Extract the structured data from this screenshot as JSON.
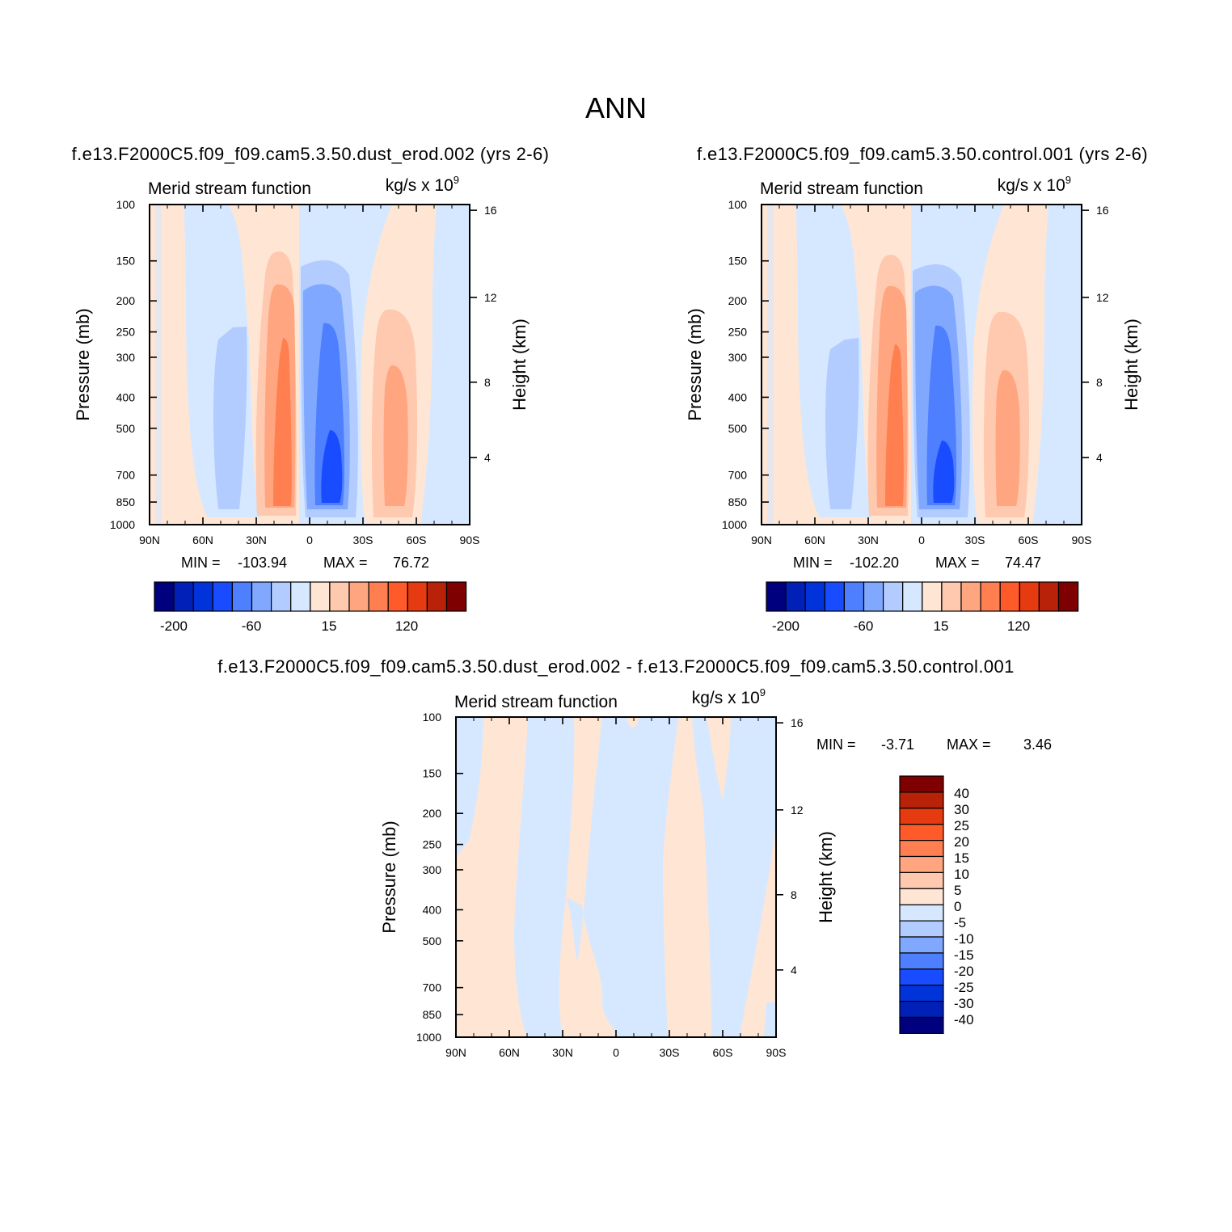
{
  "figure": {
    "title": "ANN"
  },
  "colors": {
    "cmap": [
      "#00007f",
      "#0020b8",
      "#0033d9",
      "#1a4cff",
      "#4d7fff",
      "#80a8ff",
      "#b3ccff",
      "#d6e8ff",
      "#ffe6d4",
      "#ffc9b0",
      "#ffa680",
      "#ff7f50",
      "#ff5a2a",
      "#e63a10",
      "#b82208",
      "#7f0000"
    ]
  },
  "chart_data": [
    {
      "type": "heatmap",
      "title": "f.e13.F2000C5.f09_f09.cam5.3.50.dust_erod.002 (yrs 2-6)",
      "left_string": "Merid stream function",
      "units": "kg/s x 10",
      "units_exp": "9",
      "ylabel": "Pressure (mb)",
      "ylabel_right": "Height (km)",
      "x_ticks": [
        "90N",
        "60N",
        "30N",
        "0",
        "30S",
        "60S",
        "90S"
      ],
      "y_ticks": [
        "100",
        "150",
        "200",
        "250",
        "300",
        "400",
        "500",
        "700",
        "850",
        "1000"
      ],
      "y_ticks_right": [
        "16",
        "12",
        "8",
        "4"
      ],
      "min_label": "MIN =",
      "min_value": "-103.94",
      "max_label": "MAX =",
      "max_value": "76.72",
      "colorbar": {
        "orientation": "horizontal",
        "levels": 16,
        "labels": [
          "-200",
          "-60",
          "15",
          "120"
        ]
      },
      "cells": [
        {
          "lat": -81.5,
          "p": 500,
          "value": 15
        },
        {
          "lat": -55,
          "p": 600,
          "value": -40
        },
        {
          "lat": -17,
          "p": 600,
          "value": 76.72
        },
        {
          "lat": 12,
          "p": 650,
          "value": -103.94
        },
        {
          "lat": 48,
          "p": 500,
          "value": 60
        },
        {
          "lat": 75,
          "p": 500,
          "value": -10
        }
      ]
    },
    {
      "type": "heatmap",
      "title": "f.e13.F2000C5.f09_f09.cam5.3.50.control.001 (yrs 2-6)",
      "left_string": "Merid stream function",
      "units": "kg/s x 10",
      "units_exp": "9",
      "ylabel": "Pressure (mb)",
      "ylabel_right": "Height (km)",
      "x_ticks": [
        "90N",
        "60N",
        "30N",
        "0",
        "30S",
        "60S",
        "90S"
      ],
      "y_ticks": [
        "100",
        "150",
        "200",
        "250",
        "300",
        "400",
        "500",
        "700",
        "850",
        "1000"
      ],
      "y_ticks_right": [
        "16",
        "12",
        "8",
        "4"
      ],
      "min_label": "MIN =",
      "min_value": "-102.20",
      "max_label": "MAX =",
      "max_value": "74.47",
      "colorbar": {
        "orientation": "horizontal",
        "levels": 16,
        "labels": [
          "-200",
          "-60",
          "15",
          "120"
        ]
      },
      "cells": [
        {
          "lat": -81.5,
          "p": 500,
          "value": 15
        },
        {
          "lat": -55,
          "p": 600,
          "value": -40
        },
        {
          "lat": -17,
          "p": 600,
          "value": 74.47
        },
        {
          "lat": 12,
          "p": 650,
          "value": -102.2
        },
        {
          "lat": 48,
          "p": 500,
          "value": 60
        },
        {
          "lat": 75,
          "p": 500,
          "value": -10
        }
      ]
    },
    {
      "type": "heatmap",
      "title": "f.e13.F2000C5.f09_f09.cam5.3.50.dust_erod.002 - f.e13.F2000C5.f09_f09.cam5.3.50.control.001",
      "left_string": "Merid stream function",
      "units": "kg/s x 10",
      "units_exp": "9",
      "ylabel": "Pressure (mb)",
      "ylabel_right": "Height (km)",
      "x_ticks": [
        "90N",
        "60N",
        "30N",
        "0",
        "30S",
        "60S",
        "90S"
      ],
      "y_ticks": [
        "100",
        "150",
        "200",
        "250",
        "300",
        "400",
        "500",
        "700",
        "850",
        "1000"
      ],
      "y_ticks_right": [
        "16",
        "12",
        "8",
        "4"
      ],
      "min_label": "MIN =",
      "min_value": "-3.71",
      "max_label": "MAX =",
      "max_value": "3.46",
      "colorbar": {
        "orientation": "vertical",
        "levels": 16,
        "labels": [
          "40",
          "30",
          "25",
          "20",
          "15",
          "10",
          "5",
          "0",
          "-5",
          "-10",
          "-15",
          "-20",
          "-25",
          "-30",
          "-40"
        ]
      },
      "cells": [
        {
          "lat": -80,
          "p": 500,
          "value": 3
        },
        {
          "lat": -50,
          "p": 500,
          "value": -3.71
        },
        {
          "lat": -25,
          "p": 500,
          "value": 3.46
        },
        {
          "lat": -3,
          "p": 500,
          "value": -2
        },
        {
          "lat": 28,
          "p": 500,
          "value": 2
        },
        {
          "lat": 60,
          "p": 500,
          "value": -2
        },
        {
          "lat": 85,
          "p": 500,
          "value": 1
        }
      ]
    }
  ]
}
